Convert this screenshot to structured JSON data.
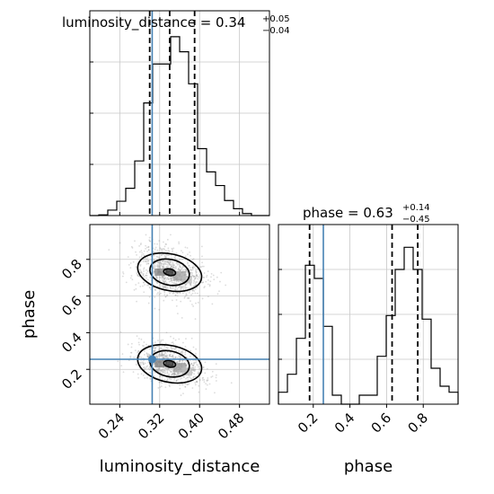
{
  "chart_data": {
    "type": "corner",
    "parameters": [
      "luminosity_distance",
      "phase"
    ],
    "truths": {
      "luminosity_distance": 0.305,
      "phase": 0.255
    },
    "titles": {
      "luminosity_distance": {
        "prefix": "luminosity_distance = ",
        "value": "0.34",
        "plus": "+0.05",
        "minus": "−0.04"
      },
      "phase": {
        "prefix": "phase = ",
        "value": "0.63",
        "plus": "+0.14",
        "minus": "−0.45"
      }
    },
    "axes": {
      "luminosity_distance": {
        "label": "luminosity_distance",
        "range": [
          0.18,
          0.54
        ],
        "ticks": [
          0.24,
          0.32,
          0.4,
          0.48
        ],
        "tick_labels": [
          "0.24",
          "0.32",
          "0.40",
          "0.48"
        ]
      },
      "phase": {
        "label": "phase",
        "range": [
          0.01,
          0.99
        ],
        "ticks": [
          0.2,
          0.4,
          0.6,
          0.8
        ],
        "tick_labels": [
          "0.2",
          "0.4",
          "0.6",
          "0.8"
        ]
      }
    },
    "hist_luminosity_distance": {
      "bin_edges": [
        0.18,
        0.198,
        0.216,
        0.234,
        0.252,
        0.27,
        0.288,
        0.306,
        0.324,
        0.342,
        0.36,
        0.378,
        0.396,
        0.414,
        0.432,
        0.45,
        0.468,
        0.486,
        0.504,
        0.522,
        0.54
      ],
      "counts": [
        0,
        1,
        8,
        21,
        40,
        80,
        165,
        222,
        222,
        262,
        240,
        193,
        98,
        64,
        44,
        22,
        10,
        3,
        0,
        0
      ],
      "quantile_lines": [
        0.3,
        0.34,
        0.39
      ]
    },
    "hist_phase": {
      "bin_edges": [
        0.01,
        0.059,
        0.108,
        0.157,
        0.206,
        0.255,
        0.304,
        0.353,
        0.402,
        0.451,
        0.5,
        0.549,
        0.598,
        0.647,
        0.696,
        0.745,
        0.794,
        0.843,
        0.892,
        0.941,
        0.99
      ],
      "counts": [
        20,
        50,
        110,
        232,
        210,
        130,
        15,
        0,
        0,
        15,
        15,
        80,
        148,
        225,
        262,
        225,
        142,
        60,
        30,
        20
      ],
      "quantile_lines": [
        0.18,
        0.63,
        0.77
      ]
    },
    "grid": true,
    "legend": "none"
  }
}
